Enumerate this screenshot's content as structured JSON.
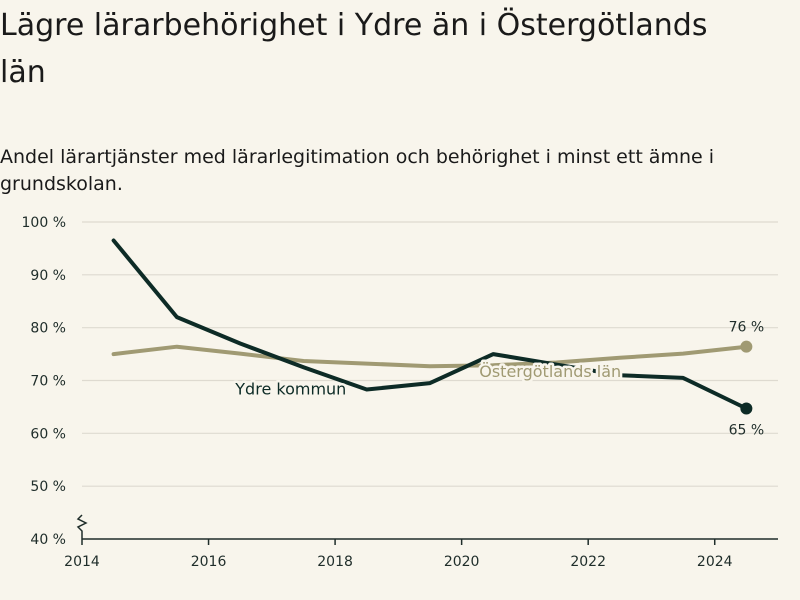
{
  "title": "Lägre lärarbehörighet i Ydre än i Östergötlands län",
  "subtitle": "Andel lärartjänster med lärarlegitimation och behörighet i minst ett ämne i grundskolan.",
  "chart_data": {
    "type": "line",
    "title": "Lägre lärarbehörighet i Ydre än i Östergötlands län",
    "subtitle": "Andel lärartjänster med lärarlegitimation och behörighet i minst ett ämne i grundskolan.",
    "xlabel": "",
    "ylabel": "",
    "xlim": [
      2014,
      2025
    ],
    "ylim": [
      40,
      100
    ],
    "x_ticks": [
      2014,
      2016,
      2018,
      2020,
      2022,
      2024
    ],
    "y_ticks": [
      40,
      50,
      60,
      70,
      80,
      90,
      100
    ],
    "y_tick_labels": [
      "40 %",
      "50 %",
      "60 %",
      "70 %",
      "80 %",
      "90 %",
      "100 %"
    ],
    "y_axis_break": true,
    "grid": "horizontal",
    "legend": "inline labels",
    "series": [
      {
        "name": "Ydre kommun",
        "color": "#0d2b26",
        "x": [
          2014.5,
          2015.5,
          2016.5,
          2017.5,
          2018.5,
          2019.5,
          2020.5,
          2021.5,
          2022.5,
          2023.5,
          2024.5
        ],
        "y": [
          96.5,
          82,
          77,
          72.5,
          68.3,
          69.5,
          75,
          73,
          71,
          70.5,
          64.7
        ],
        "end_label": "65 %"
      },
      {
        "name": "Östergötlands län",
        "color": "#a09a73",
        "x": [
          2014.5,
          2015.5,
          2016.5,
          2017.5,
          2018.5,
          2019.5,
          2020.5,
          2021.5,
          2022.5,
          2023.5,
          2024.5
        ],
        "y": [
          75,
          76.4,
          75.1,
          73.7,
          73.2,
          72.7,
          72.9,
          73.4,
          74.3,
          75.1,
          76.4
        ],
        "end_label": "76 %"
      }
    ]
  }
}
